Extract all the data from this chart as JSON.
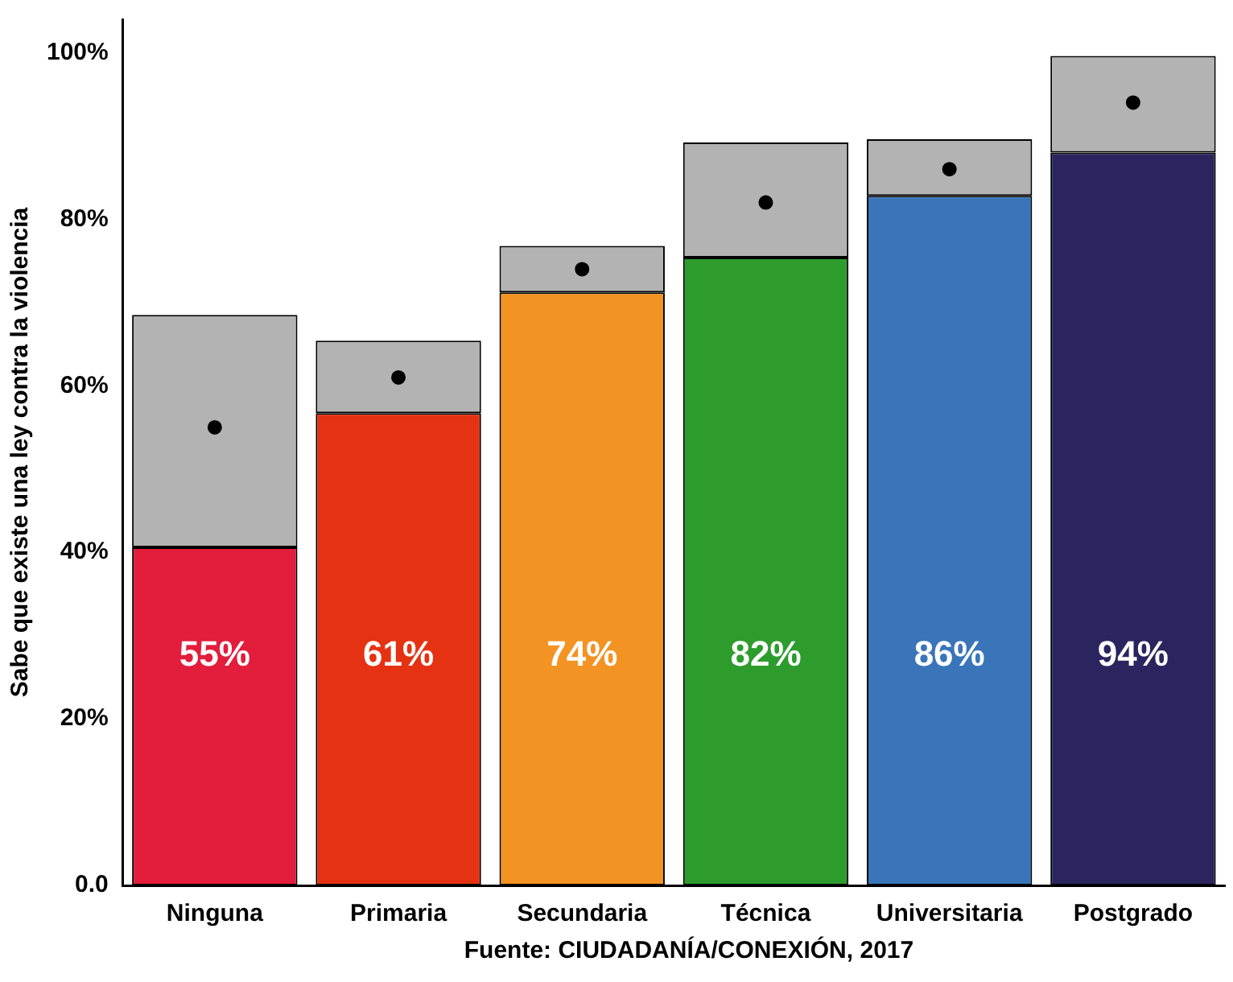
{
  "chart_data": {
    "type": "bar",
    "stacked": true,
    "ylabel": "Sabe que existe una ley contra la violencia",
    "annotations": [
      "Fuente: CIUDADANÍA/CONEXIÓN, 2017",
      "55%",
      "61%",
      "74%",
      "82%",
      "86%",
      "94%"
    ],
    "categories": [
      "Ninguna",
      "Primaria",
      "Secundaria",
      "Técnica",
      "Universitaria",
      "Postgrado"
    ],
    "series": [
      {
        "type": "bar",
        "colors": [
          "#e31d3c",
          "#e53212",
          "#f39323",
          "#2d9c2d",
          "#3a75b9",
          "#2a255e"
        ],
        "values": [
          40.6,
          56.7,
          71.2,
          75.4,
          82.8,
          88.0
        ]
      },
      {
        "type": "bar",
        "color": "#b3b3b3",
        "values": [
          27.9,
          8.7,
          5.6,
          13.8,
          6.8,
          11.6
        ]
      },
      {
        "type": "scatter",
        "color": "#000000",
        "marker": "circle",
        "x": [
          "Ninguna",
          "Primaria",
          "Secundaria",
          "Técnica",
          "Universitaria",
          "Postgrado"
        ],
        "values": [
          55,
          61,
          74,
          82,
          86,
          94
        ]
      }
    ],
    "ylim": [
      0,
      104
    ],
    "yticks": [
      {
        "value": 0,
        "label": "0.0"
      },
      {
        "value": 20,
        "label": "20%"
      },
      {
        "value": 40,
        "label": "40%"
      },
      {
        "value": 60,
        "label": "60%"
      },
      {
        "value": 80,
        "label": "80%"
      },
      {
        "value": 100,
        "label": "100%"
      }
    ],
    "grid": false,
    "legend": false
  }
}
